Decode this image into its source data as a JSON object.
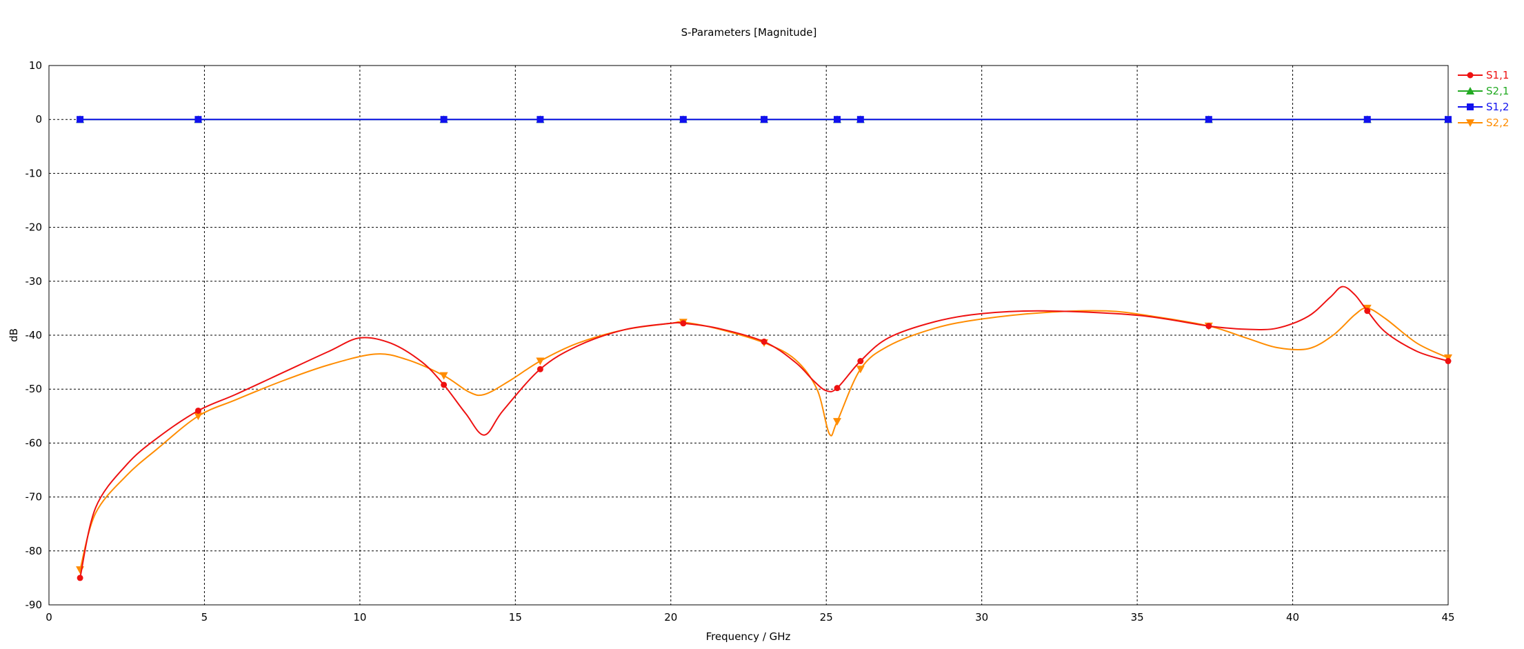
{
  "chart_data": {
    "type": "line",
    "title": "S-Parameters [Magnitude]",
    "xlabel": "Frequency / GHz",
    "ylabel": "dB",
    "xlim": [
      0,
      45
    ],
    "ylim": [
      -90,
      10
    ],
    "xticks": [
      0,
      5,
      10,
      15,
      20,
      25,
      30,
      35,
      40,
      45
    ],
    "yticks": [
      10,
      0,
      -10,
      -20,
      -30,
      -40,
      -50,
      -60,
      -70,
      -80,
      -90
    ],
    "grid": true,
    "legend_position": "right",
    "series": [
      {
        "name": "S1,1",
        "color": "#ee1111",
        "marker": "circle",
        "points": [
          [
            1,
            -85
          ],
          [
            1.5,
            -72
          ],
          [
            2.5,
            -64
          ],
          [
            3.5,
            -59
          ],
          [
            4.8,
            -54
          ],
          [
            6,
            -51
          ],
          [
            7.5,
            -47
          ],
          [
            9,
            -43
          ],
          [
            10,
            -40.5
          ],
          [
            11,
            -41.5
          ],
          [
            12,
            -45
          ],
          [
            12.7,
            -49.2
          ],
          [
            13.4,
            -54.5
          ],
          [
            14,
            -58.5
          ],
          [
            14.6,
            -54
          ],
          [
            15.8,
            -46.3
          ],
          [
            17,
            -42
          ],
          [
            18.5,
            -39
          ],
          [
            20,
            -37.8
          ],
          [
            20.4,
            -37.8
          ],
          [
            21.5,
            -38.7
          ],
          [
            23,
            -41.2
          ],
          [
            24,
            -45
          ],
          [
            24.6,
            -48.5
          ],
          [
            25,
            -50.3
          ],
          [
            25.35,
            -49.8
          ],
          [
            26.1,
            -44.8
          ],
          [
            27,
            -40.5
          ],
          [
            28.5,
            -37.5
          ],
          [
            30,
            -36
          ],
          [
            32,
            -35.5
          ],
          [
            35,
            -36.3
          ],
          [
            37.3,
            -38.3
          ],
          [
            38.5,
            -38.9
          ],
          [
            39.5,
            -38.7
          ],
          [
            40.5,
            -36.5
          ],
          [
            41.2,
            -33
          ],
          [
            41.6,
            -31
          ],
          [
            42,
            -32.5
          ],
          [
            42.4,
            -35.5
          ],
          [
            43,
            -39.5
          ],
          [
            44,
            -43
          ],
          [
            45,
            -44.8
          ]
        ],
        "markers_x": [
          1,
          4.8,
          12.7,
          15.8,
          20.4,
          23,
          25.35,
          26.1,
          37.3,
          42.4,
          45
        ]
      },
      {
        "name": "S2,1",
        "color": "#22aa22",
        "marker": "triangle",
        "points": [
          [
            1,
            0
          ],
          [
            45,
            0
          ]
        ],
        "markers_x": [
          1,
          4.8,
          12.7,
          15.8,
          20.4,
          23,
          25.35,
          26.1,
          37.3,
          42.4,
          45
        ]
      },
      {
        "name": "S1,2",
        "color": "#1111ee",
        "marker": "square",
        "points": [
          [
            1,
            0
          ],
          [
            45,
            0
          ]
        ],
        "markers_x": [
          1,
          4.8,
          12.7,
          15.8,
          20.4,
          23,
          25.35,
          26.1,
          37.3,
          42.4,
          45
        ]
      },
      {
        "name": "S2,2",
        "color": "#ff8c00",
        "marker": "triangle-down",
        "points": [
          [
            1,
            -83.5
          ],
          [
            1.5,
            -73
          ],
          [
            2.5,
            -66
          ],
          [
            3.5,
            -61
          ],
          [
            4.8,
            -55
          ],
          [
            6,
            -52
          ],
          [
            7.5,
            -48.5
          ],
          [
            9,
            -45.5
          ],
          [
            10.5,
            -43.5
          ],
          [
            11.5,
            -44.5
          ],
          [
            12.7,
            -47.5
          ],
          [
            13.5,
            -50.5
          ],
          [
            14,
            -51
          ],
          [
            14.8,
            -48.5
          ],
          [
            15.8,
            -44.8
          ],
          [
            17,
            -41.5
          ],
          [
            18.5,
            -39
          ],
          [
            20,
            -37.8
          ],
          [
            20.4,
            -37.6
          ],
          [
            21.5,
            -38.8
          ],
          [
            23,
            -41.4
          ],
          [
            24,
            -44.5
          ],
          [
            24.7,
            -50
          ],
          [
            25.1,
            -58.3
          ],
          [
            25.35,
            -56
          ],
          [
            26.1,
            -46.3
          ],
          [
            27,
            -42
          ],
          [
            28.5,
            -38.7
          ],
          [
            30,
            -37
          ],
          [
            32,
            -35.8
          ],
          [
            34,
            -35.5
          ],
          [
            35.5,
            -36.5
          ],
          [
            37.3,
            -38.3
          ],
          [
            38.5,
            -40.5
          ],
          [
            39.5,
            -42.3
          ],
          [
            40.5,
            -42.5
          ],
          [
            41.3,
            -40
          ],
          [
            42,
            -36.2
          ],
          [
            42.4,
            -35
          ],
          [
            43,
            -37
          ],
          [
            44,
            -41.5
          ],
          [
            45,
            -44.2
          ]
        ],
        "markers_x": [
          1,
          4.8,
          12.7,
          15.8,
          20.4,
          23,
          25.35,
          26.1,
          37.3,
          42.4,
          45
        ]
      }
    ]
  }
}
